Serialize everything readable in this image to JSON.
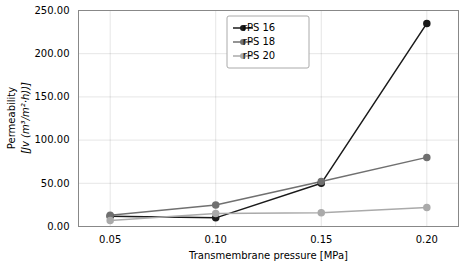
{
  "chart_data": {
    "type": "line",
    "xlabel": "Transmembrane pressure [MPa]",
    "ylabel": [
      "Permeability",
      "[Jv (m³/m²·h))]"
    ],
    "x": [
      0.05,
      0.1,
      0.15,
      0.2
    ],
    "series": [
      {
        "name": "rPS 16",
        "color": "#1a1a1a",
        "values": [
          12.0,
          10.0,
          50.0,
          235.0
        ]
      },
      {
        "name": "rPS 18",
        "color": "#707070",
        "values": [
          13.0,
          25.0,
          52.0,
          80.0
        ]
      },
      {
        "name": "rPS 20",
        "color": "#aaaaaa",
        "values": [
          7.0,
          15.0,
          16.0,
          22.0
        ]
      }
    ],
    "xlim": [
      0.035,
      0.215
    ],
    "xticks": [
      {
        "value": 0.05,
        "label": "0.05"
      },
      {
        "value": 0.1,
        "label": "0.10"
      },
      {
        "value": 0.15,
        "label": "0.15"
      },
      {
        "value": 0.2,
        "label": "0.20"
      }
    ],
    "ylim": [
      0,
      250
    ],
    "yticks": [
      {
        "value": 0,
        "label": "0.00"
      },
      {
        "value": 50,
        "label": "50.00"
      },
      {
        "value": 100,
        "label": "100.00"
      },
      {
        "value": 150,
        "label": "150.00"
      },
      {
        "value": 200,
        "label": "200.00"
      },
      {
        "value": 250,
        "label": "250.00"
      }
    ],
    "grid": true,
    "legend": "upper center",
    "marker": "circle"
  }
}
